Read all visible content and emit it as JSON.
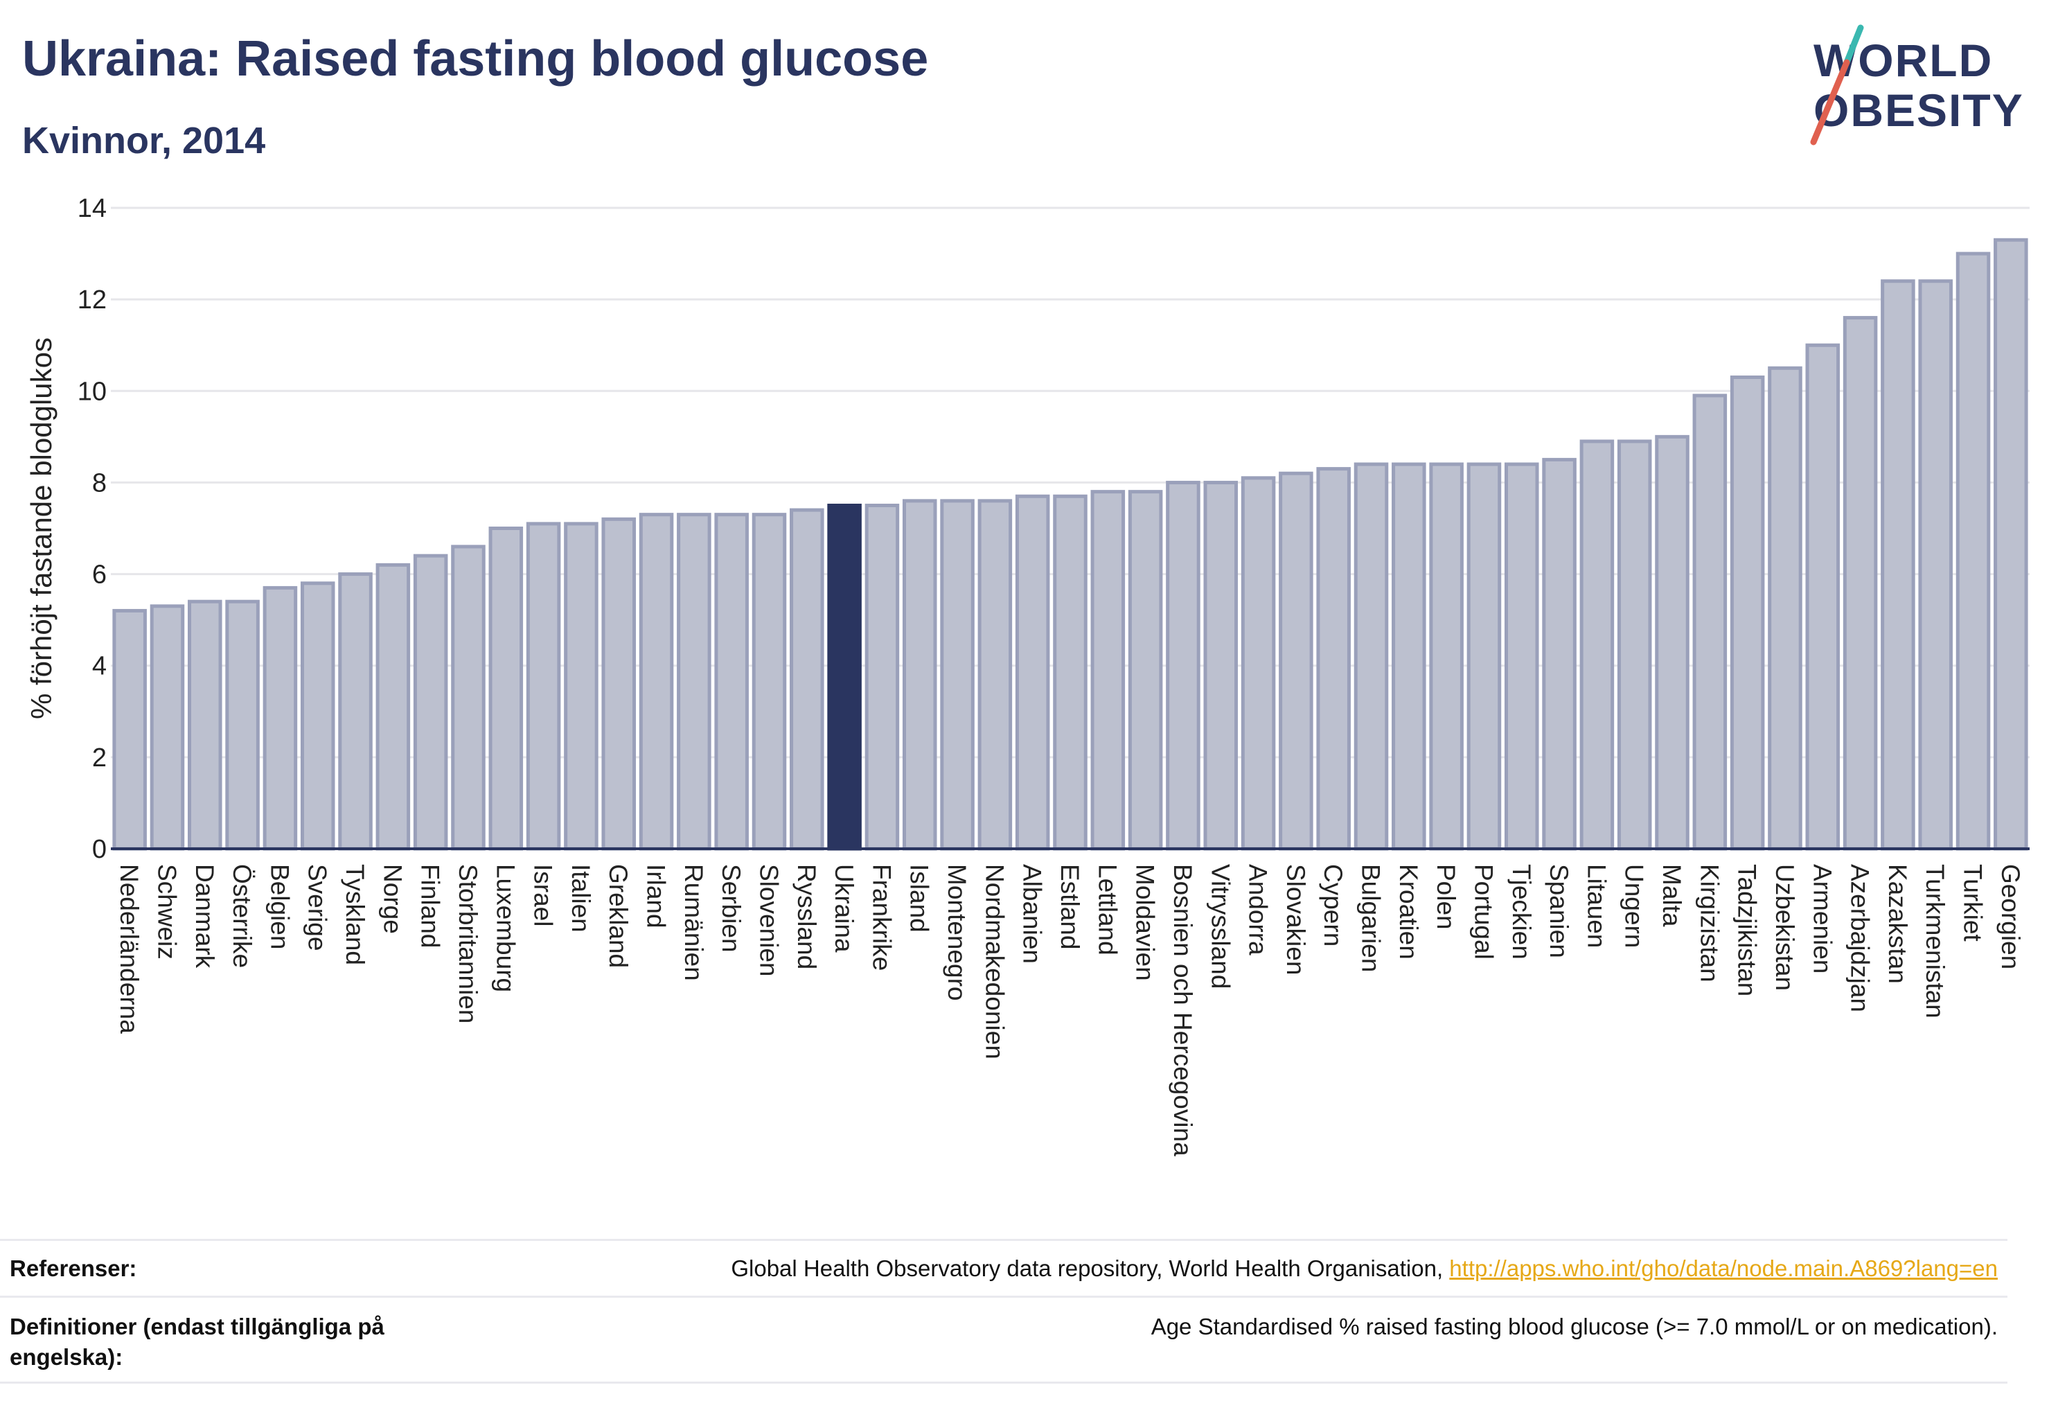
{
  "title": "Ukraina: Raised fasting blood glucose",
  "subtitle": "Kvinnor, 2014",
  "logo": {
    "line1": "WORLD",
    "line2": "OBESITY",
    "accent": "#e0604f",
    "accent2": "#3ab8b0",
    "color": "#2a3560"
  },
  "colors": {
    "bar": "#bcc0cf",
    "bar_edge": "#9aa0ba",
    "highlight": "#2a3560",
    "grid": "#e6e6ea",
    "axis": "#2a3560"
  },
  "chart_data": {
    "type": "bar",
    "ylabel": "% förhöjt fastande blodglukos",
    "ylim": [
      0,
      14
    ],
    "yticks": [
      0,
      2,
      4,
      6,
      8,
      10,
      12,
      14
    ],
    "highlight": "Ukraina",
    "grid": true,
    "categories": [
      "Nederländerna",
      "Schweiz",
      "Danmark",
      "Österrike",
      "Belgien",
      "Sverige",
      "Tyskland",
      "Norge",
      "Finland",
      "Storbritannien",
      "Luxemburg",
      "Israel",
      "Italien",
      "Grekland",
      "Irland",
      "Rumänien",
      "Serbien",
      "Slovenien",
      "Ryssland",
      "Ukraina",
      "Frankrike",
      "Island",
      "Montenegro",
      "Nordmakedonien",
      "Albanien",
      "Estland",
      "Lettland",
      "Moldavien",
      "Bosnien och Hercegovina",
      "Vitryssland",
      "Andorra",
      "Slovakien",
      "Cypern",
      "Bulgarien",
      "Kroatien",
      "Polen",
      "Portugal",
      "Tjeckien",
      "Spanien",
      "Litauen",
      "Ungern",
      "Malta",
      "Kirgizistan",
      "Tadzjikistan",
      "Uzbekistan",
      "Armenien",
      "Azerbajdzjan",
      "Kazakstan",
      "Turkmenistan",
      "Turkiet",
      "Georgien"
    ],
    "values": [
      5.2,
      5.3,
      5.4,
      5.4,
      5.7,
      5.8,
      6.0,
      6.2,
      6.4,
      6.6,
      7.0,
      7.1,
      7.1,
      7.2,
      7.3,
      7.3,
      7.3,
      7.3,
      7.4,
      7.5,
      7.5,
      7.6,
      7.6,
      7.6,
      7.7,
      7.7,
      7.8,
      7.8,
      8.0,
      8.0,
      8.1,
      8.2,
      8.3,
      8.4,
      8.4,
      8.4,
      8.4,
      8.4,
      8.5,
      8.9,
      8.9,
      9.0,
      9.9,
      10.3,
      10.5,
      11.0,
      11.6,
      12.4,
      12.4,
      13.0,
      13.3
    ]
  },
  "footer": {
    "ref_label": "Referenser:",
    "ref_text": "Global Health Observatory data repository, World Health Organisation, ",
    "ref_link": "http://apps.who.int/gho/data/node.main.A869?lang=en",
    "def_label": "Definitioner (endast tillgängliga på engelska):",
    "def_text": "Age Standardised % raised fasting blood glucose (>= 7.0 mmol/L or on medication)."
  }
}
